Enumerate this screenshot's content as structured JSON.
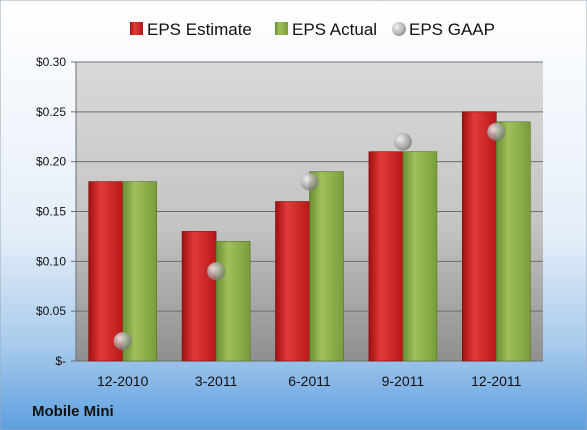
{
  "company_label": "Mobile Mini",
  "chart_data": {
    "type": "bar",
    "categories": [
      "12-2010",
      "3-2011",
      "6-2011",
      "9-2011",
      "12-2011"
    ],
    "series": [
      {
        "name": "EPS Estimate",
        "kind": "bar",
        "color": "#d42020",
        "values": [
          0.18,
          0.13,
          0.16,
          0.21,
          0.25
        ]
      },
      {
        "name": "EPS Actual",
        "kind": "bar",
        "color": "#8cb04a",
        "values": [
          0.18,
          0.12,
          0.19,
          0.21,
          0.24
        ]
      },
      {
        "name": "EPS GAAP",
        "kind": "scatter",
        "color": "#a0a0a0",
        "values": [
          0.02,
          0.09,
          0.18,
          0.22,
          0.23
        ]
      }
    ],
    "ylim": [
      0,
      0.3
    ],
    "yticks": [
      0,
      0.05,
      0.1,
      0.15,
      0.2,
      0.25,
      0.3
    ],
    "ytick_labels": [
      "$-",
      "$0.05",
      "$0.10",
      "$0.15",
      "$0.20",
      "$0.25",
      "$0.30"
    ],
    "grid": true,
    "legend_position": "top"
  }
}
